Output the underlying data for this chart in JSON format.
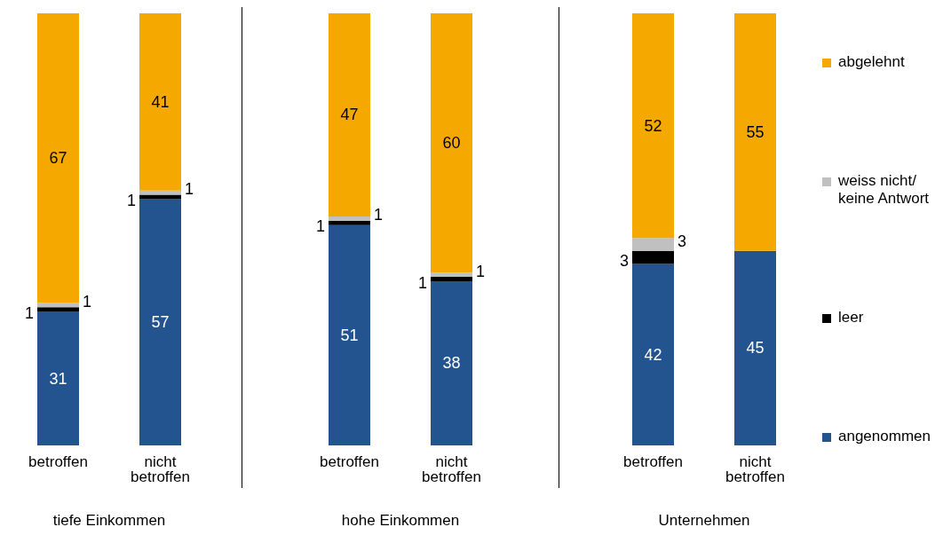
{
  "chart_data": [
    {
      "type": "bar",
      "stacked": true,
      "data_labels": true,
      "xlabel": "tiefe Einkommen",
      "categories": [
        "betroffen",
        "nicht betroffen"
      ],
      "series": [
        {
          "color": "#24548f",
          "values": [
            31,
            57
          ]
        },
        {
          "color": "#000000",
          "values": [
            1,
            1
          ]
        },
        {
          "color": "#c0c0c0",
          "values": [
            1,
            1
          ]
        },
        {
          "color": "#f5a800",
          "values": [
            67,
            41
          ]
        }
      ]
    },
    {
      "type": "bar",
      "stacked": true,
      "data_labels": true,
      "xlabel": "hohe Einkommen",
      "categories": [
        "betroffen",
        "nicht betroffen"
      ],
      "series": [
        {
          "color": "#24548f",
          "values": [
            51,
            38
          ]
        },
        {
          "color": "#000000",
          "values": [
            1,
            1
          ]
        },
        {
          "color": "#c0c0c0",
          "values": [
            1,
            1
          ]
        },
        {
          "color": "#f5a800",
          "values": [
            47,
            60
          ]
        }
      ]
    },
    {
      "type": "bar",
      "stacked": true,
      "data_labels": true,
      "legend": "right",
      "xlabel": "Unternehmen",
      "categories": [
        "betroffen",
        "nicht betroffen"
      ],
      "series": [
        {
          "name": "angenommen",
          "color": "#24548f",
          "values": [
            42,
            45
          ]
        },
        {
          "name": "leer",
          "color": "#000000",
          "values": [
            3,
            null
          ]
        },
        {
          "name": "weiss nicht/ keine Antwort",
          "color": "#c0c0c0",
          "values": [
            3,
            null
          ]
        },
        {
          "name": "abgelehnt",
          "color": "#f5a800",
          "values": [
            52,
            55
          ]
        }
      ]
    }
  ]
}
